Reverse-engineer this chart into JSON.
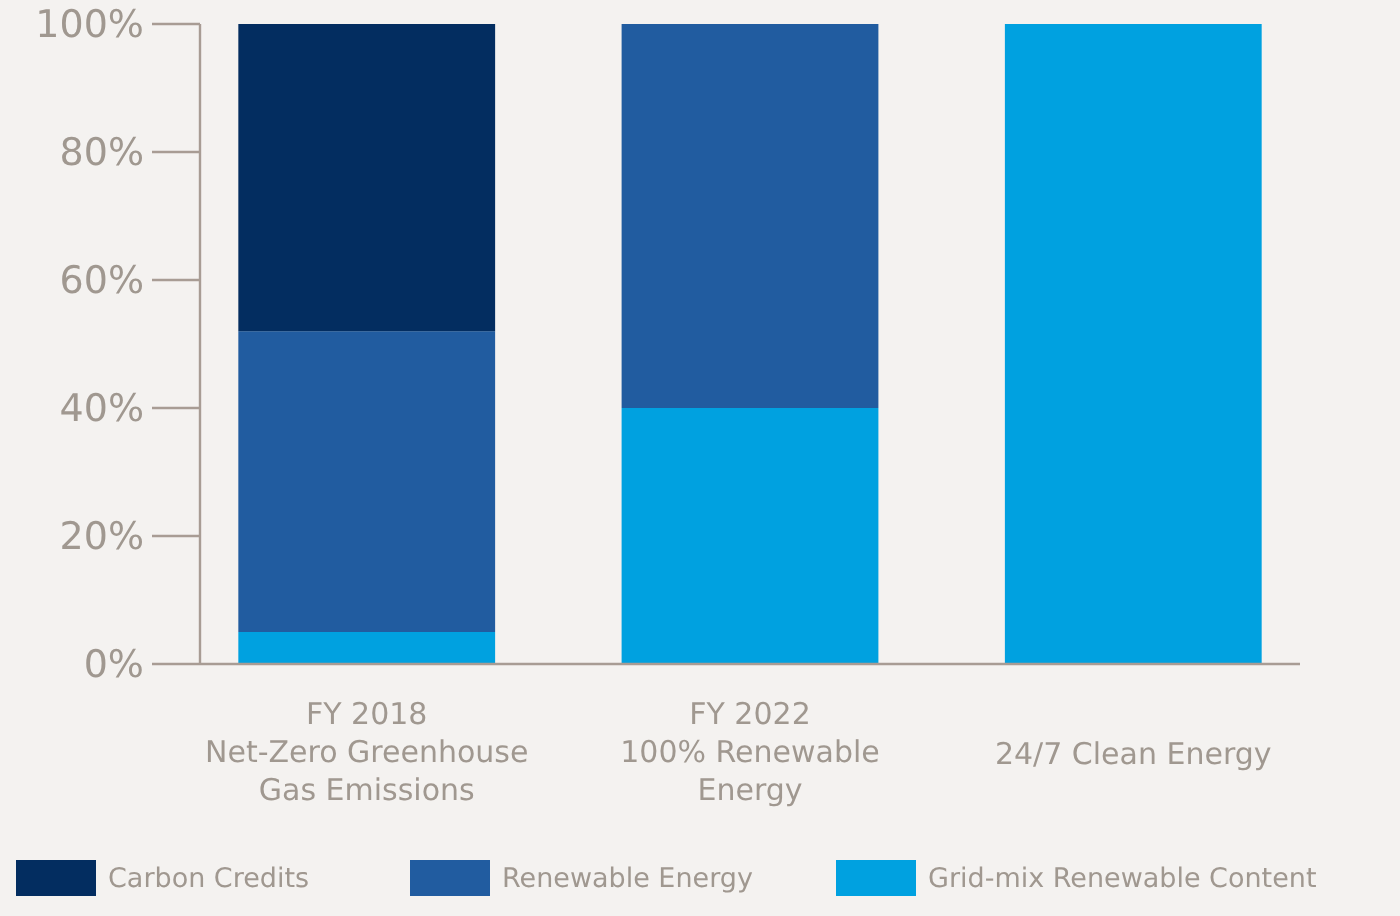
{
  "chart_data": {
    "type": "bar",
    "stacked": true,
    "categories": [
      "FY 2018\nNet-Zero Greenhouse\nGas Emissions",
      "FY 2022\n100% Renewable\nEnergy",
      "24/7 Clean Energy"
    ],
    "series": [
      {
        "name": "Grid-mix Renewable Content",
        "color": "#00a1e0",
        "values": [
          5,
          40,
          100
        ]
      },
      {
        "name": "Renewable Energy",
        "color": "#215ca0",
        "values": [
          47,
          60,
          0
        ]
      },
      {
        "name": "Carbon Credits",
        "color": "#032d60",
        "values": [
          48,
          0,
          0
        ]
      }
    ],
    "ylim": [
      0,
      100
    ],
    "yticks": [
      {
        "value": 0,
        "label": "0%"
      },
      {
        "value": 20,
        "label": "20%"
      },
      {
        "value": 40,
        "label": "40%"
      },
      {
        "value": 60,
        "label": "60%"
      },
      {
        "value": 80,
        "label": "80%"
      },
      {
        "value": 100,
        "label": "100%"
      }
    ],
    "grid": false,
    "legend": "bottom"
  }
}
